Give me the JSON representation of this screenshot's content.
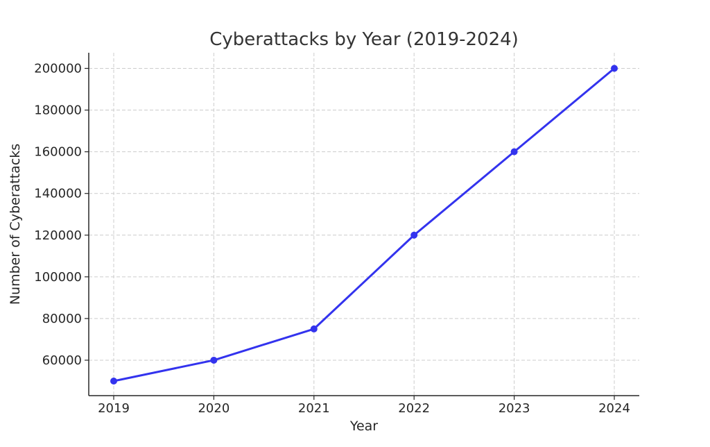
{
  "chart_data": {
    "type": "line",
    "title": "Cyberattacks by Year (2019-2024)",
    "xlabel": "Year",
    "ylabel": "Number of Cyberattacks",
    "categories": [
      "2019",
      "2020",
      "2021",
      "2022",
      "2023",
      "2024"
    ],
    "series": [
      {
        "values": [
          50000,
          60000,
          75000,
          120000,
          160000,
          200000
        ],
        "color": "#3333ee",
        "marker": "circle"
      }
    ],
    "ylim": [
      43000,
      207500
    ],
    "yticks": [
      60000,
      80000,
      100000,
      120000,
      140000,
      160000,
      180000,
      200000
    ],
    "grid": true,
    "legend": "none"
  }
}
